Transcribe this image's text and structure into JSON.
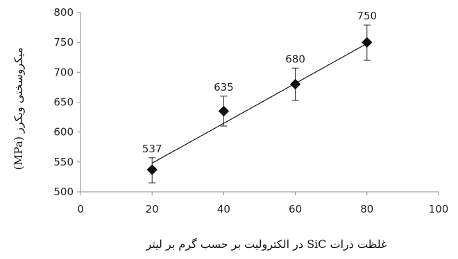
{
  "chart_data": {
    "type": "scatter",
    "title": "",
    "xlabel": "غلظت ذرات SiC در الکترولیت بر حسب گرم بر لیتر",
    "ylabel": "میکروسختی ویکرز (MPa)",
    "xlim": [
      0,
      100
    ],
    "ylim": [
      500,
      800
    ],
    "xticks": [
      0,
      20,
      40,
      60,
      80,
      100
    ],
    "yticks": [
      500,
      550,
      600,
      650,
      700,
      750,
      800
    ],
    "grid": false,
    "series": [
      {
        "x": [
          20,
          40,
          60,
          80
        ],
        "y": [
          537,
          635,
          680,
          750
        ],
        "yerr_low": [
          515,
          610,
          653,
          720
        ],
        "yerr_high": [
          557,
          660,
          707,
          779
        ],
        "data_labels": [
          "537",
          "635",
          "680",
          "750"
        ],
        "marker": "diamond",
        "color": "#111111"
      }
    ],
    "trendline": {
      "type": "linear",
      "x": [
        20,
        80
      ],
      "y": [
        548,
        748
      ],
      "color": "#111111"
    }
  }
}
